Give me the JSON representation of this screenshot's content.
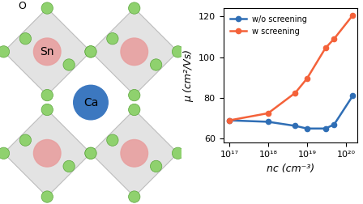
{
  "chart_data": {
    "type": "line",
    "x_label": "nc (cm⁻³)",
    "y_label": "μ (cm²/Vs)",
    "log": "x",
    "xlim": [
      7e+16,
      2e+20
    ],
    "xticks": [
      {
        "value": 1e+17,
        "label": "10¹⁷"
      },
      {
        "value": 1e+18,
        "label": "10¹⁸"
      },
      {
        "value": 1e+19,
        "label": "10¹⁹"
      },
      {
        "value": 1e+20,
        "label": "10²⁰"
      }
    ],
    "ylim": [
      58,
      124
    ],
    "yticks": [
      60,
      80,
      100,
      120
    ],
    "grid": false,
    "legend": "upper left",
    "series": [
      {
        "name": "w/o screening",
        "color": "#2f6eb5",
        "marker": "o",
        "line_style": "solid",
        "x": [
          1e+17,
          1e+18,
          5e+18,
          1e+19,
          3e+19,
          5e+19,
          1.5e+20
        ],
        "values": [
          69,
          68.3,
          66.3,
          65,
          65,
          67,
          81
        ]
      },
      {
        "name": "w screening",
        "color": "#f4623a",
        "marker": "o",
        "line_style": "solid",
        "x": [
          1e+17,
          1e+18,
          5e+18,
          1e+19,
          3e+19,
          5e+19,
          1.5e+20
        ],
        "values": [
          69,
          72.5,
          82.5,
          89.5,
          104.5,
          109,
          120.5
        ]
      }
    ]
  },
  "diagram": {
    "labels": {
      "oxygen": "O",
      "tin": "Sn",
      "calcium": "Ca"
    }
  }
}
